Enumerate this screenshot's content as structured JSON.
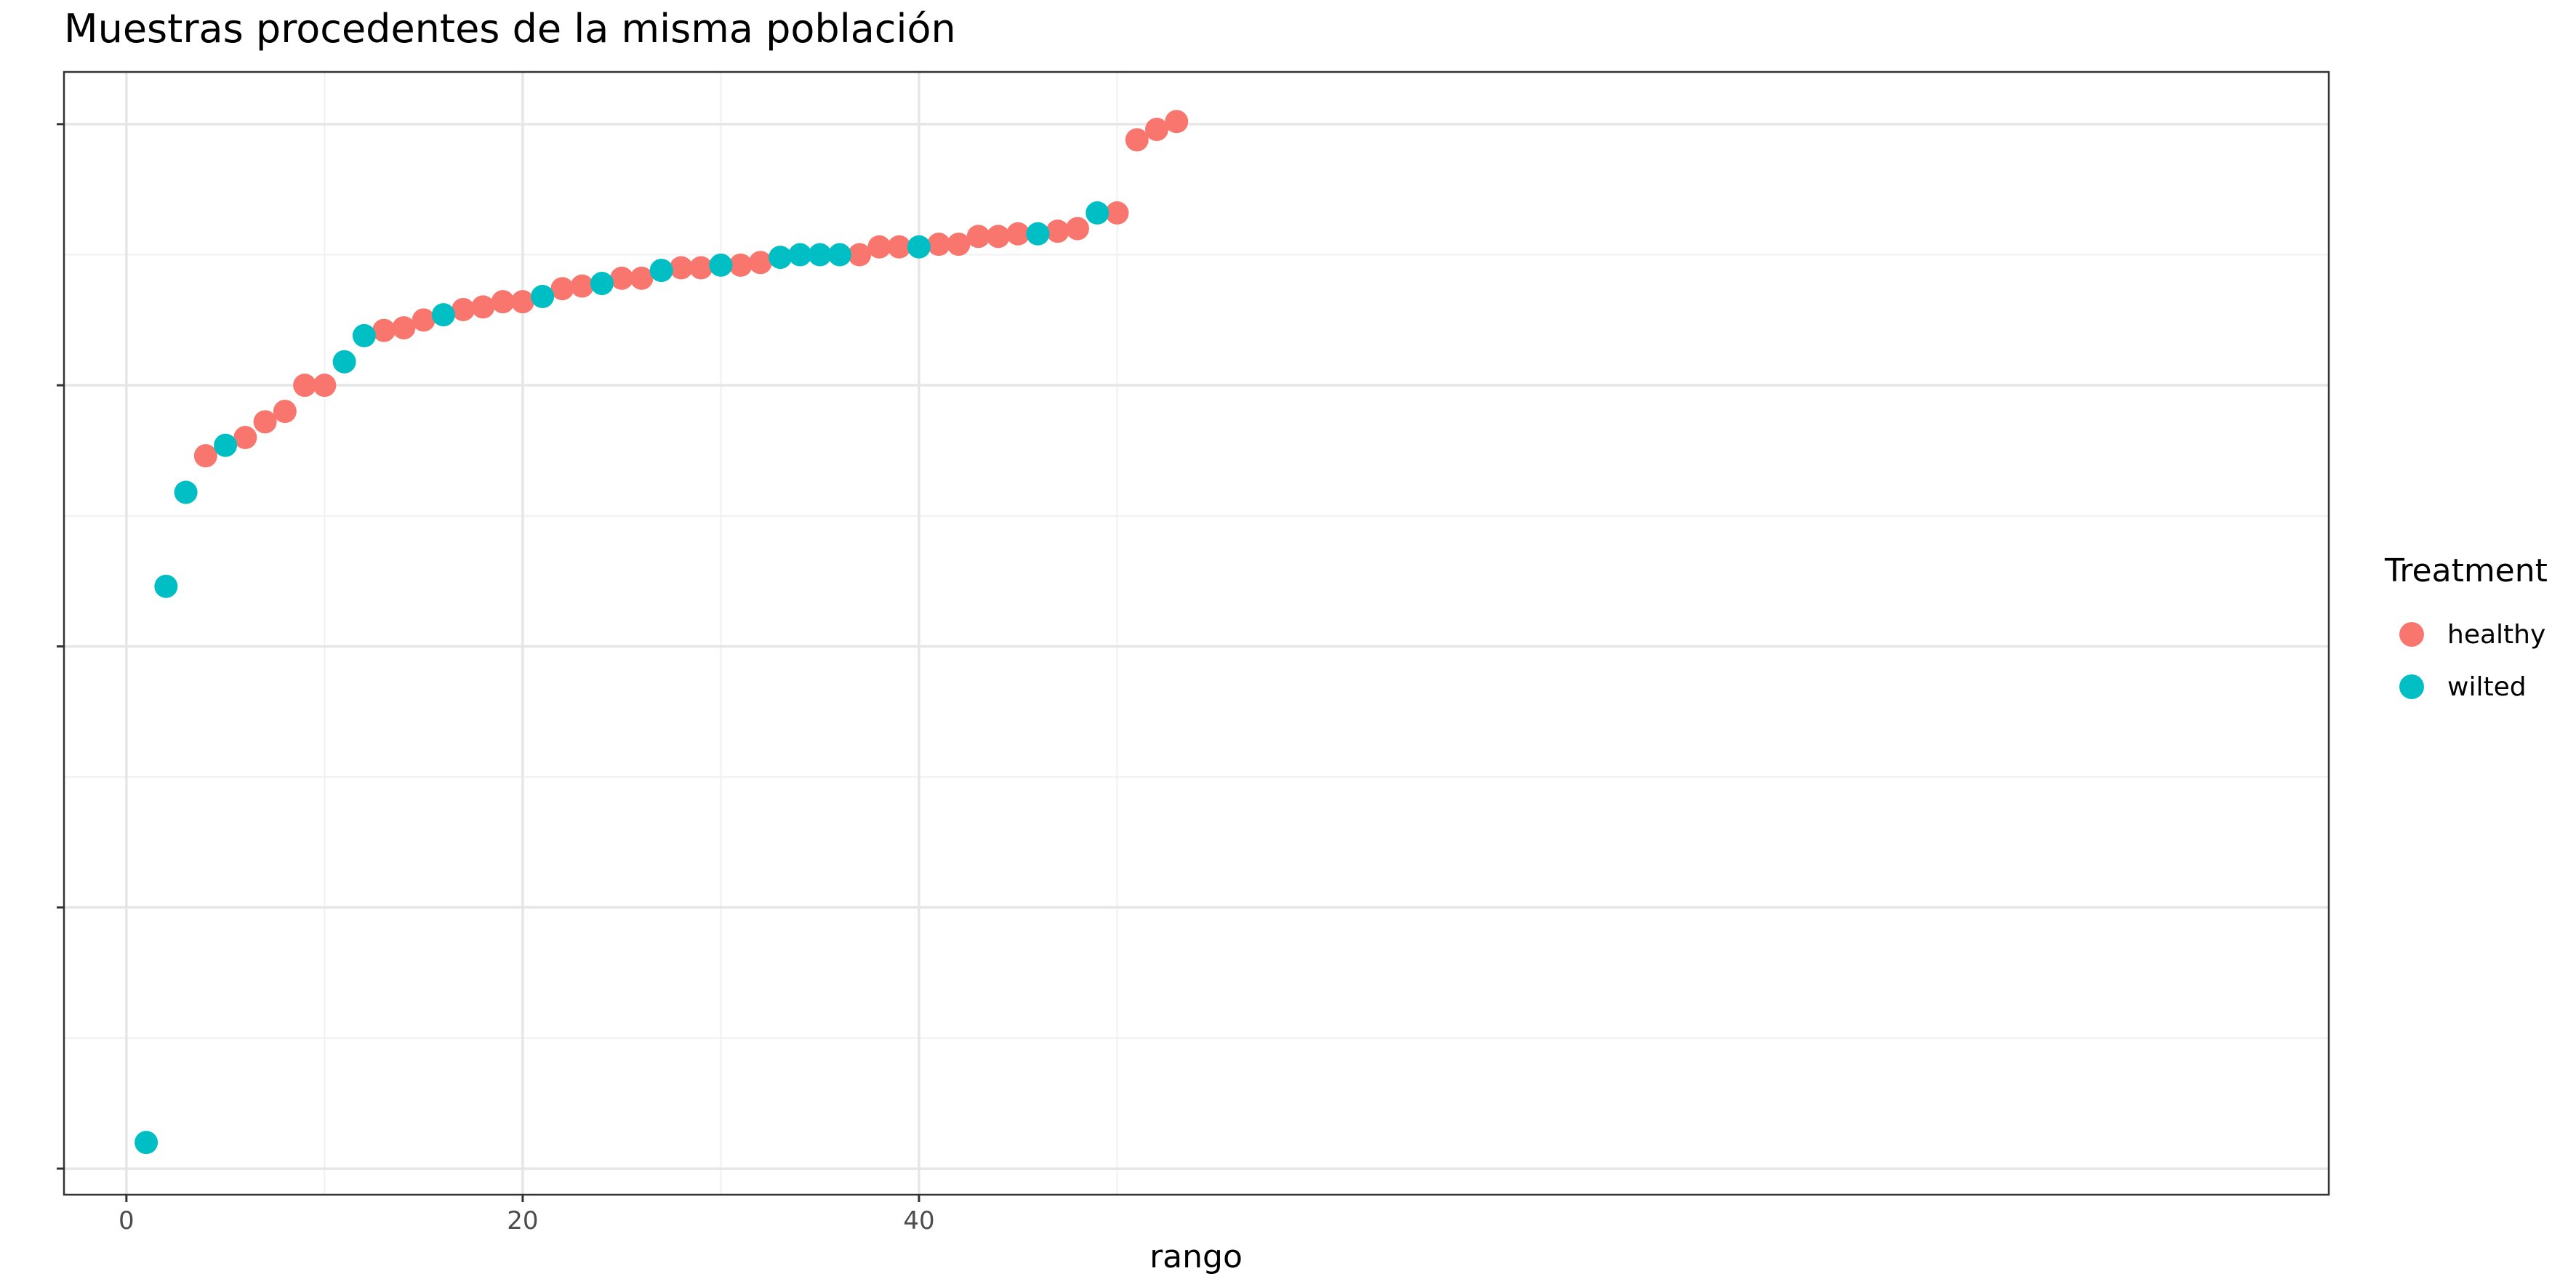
{
  "chart_data": {
    "type": "scatter",
    "title": "Muestras procedentes de la misma población",
    "xlabel": "rango",
    "ylabel": "",
    "xlim": [
      -3.15,
      111.15
    ],
    "ylim": [
      -0.1,
      4.2
    ],
    "xticks": [
      0,
      20,
      40
    ],
    "yticks": [
      0,
      1,
      2,
      3,
      4
    ],
    "ytick_labels_visible": false,
    "grid": true,
    "legend": {
      "title": "Treatment",
      "position": "right",
      "entries": [
        {
          "name": "healthy",
          "color": "#F8766D"
        },
        {
          "name": "wilted",
          "color": "#00BFC4"
        }
      ]
    },
    "series": [
      {
        "name": "healthy",
        "color": "#F8766D",
        "x": [
          4,
          6,
          7,
          8,
          9,
          10,
          13,
          14,
          15,
          17,
          18,
          19,
          20,
          22,
          23,
          25,
          26,
          28,
          29,
          31,
          32,
          37,
          38,
          39,
          41,
          42,
          43,
          44,
          45,
          47,
          48,
          50,
          51,
          52,
          53
        ],
        "y": [
          2.73,
          2.8,
          2.86,
          2.9,
          3.0,
          3.0,
          3.21,
          3.22,
          3.25,
          3.29,
          3.3,
          3.32,
          3.32,
          3.37,
          3.38,
          3.41,
          3.41,
          3.45,
          3.45,
          3.46,
          3.47,
          3.5,
          3.53,
          3.53,
          3.54,
          3.54,
          3.57,
          3.57,
          3.58,
          3.59,
          3.6,
          3.66,
          3.94,
          3.98,
          4.01
        ]
      },
      {
        "name": "wilted",
        "color": "#00BFC4",
        "x": [
          1,
          2,
          3,
          5,
          11,
          12,
          16,
          21,
          24,
          27,
          30,
          33,
          34,
          35,
          36,
          40,
          46,
          49
        ],
        "y": [
          0.1,
          2.23,
          2.59,
          2.77,
          3.09,
          3.19,
          3.27,
          3.34,
          3.39,
          3.44,
          3.46,
          3.49,
          3.5,
          3.5,
          3.5,
          3.53,
          3.58,
          3.66
        ]
      }
    ]
  }
}
